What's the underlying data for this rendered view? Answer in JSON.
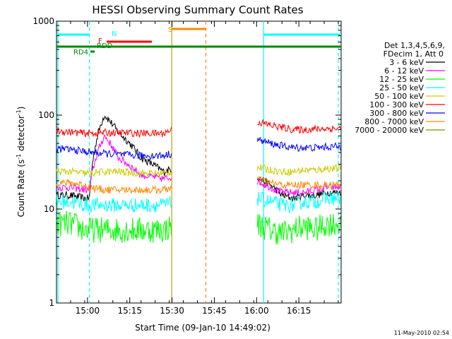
{
  "chart_data": {
    "type": "line",
    "title": "HESSI Observing Summary Count Rates",
    "xlabel": "Start Time (09-Jan-10 14:49:02)",
    "ylabel": "Count Rate (s^-1 detector^-1)",
    "ylabel_parts": {
      "base": "Count Rate (s",
      "sup1": "-1",
      "mid": " detector",
      "sup2": "-1",
      "end": ")"
    },
    "y_scale": "log",
    "ylim": [
      1,
      1000
    ],
    "y_ticks": [
      {
        "value": 1,
        "label": "1"
      },
      {
        "value": 10,
        "label": "10"
      },
      {
        "value": 100,
        "label": "100"
      },
      {
        "value": 1000,
        "label": "1000"
      }
    ],
    "xlim_minutes_after_1449": [
      0,
      101
    ],
    "x_ticks": [
      {
        "value": 11,
        "label": "15:00"
      },
      {
        "value": 26,
        "label": "15:15"
      },
      {
        "value": 41,
        "label": "15:30"
      },
      {
        "value": 56,
        "label": "15:45"
      },
      {
        "value": 71,
        "label": "16:00"
      },
      {
        "value": 86,
        "label": "16:15"
      }
    ],
    "legend": {
      "header": [
        "Det 1,3,4,5,6,9,",
        "FDecim 1, Att 0"
      ],
      "placement": "right"
    },
    "series": [
      {
        "name": "3 - 6 keV",
        "color": "#000000",
        "x": [
          0,
          5,
          10,
          11.7,
          17,
          22,
          30,
          38,
          40.9,
          53,
          71,
          76,
          80,
          84,
          88,
          92,
          96,
          101
        ],
        "y": [
          14,
          14,
          13,
          13,
          100,
          65,
          35,
          25,
          27,
          null,
          22,
          18,
          14,
          13,
          14,
          14,
          15,
          15
        ]
      },
      {
        "name": "6 - 12 keV",
        "color": "#ff00ff",
        "x": [
          0,
          5,
          10,
          11.7,
          17,
          22,
          30,
          38,
          40.9,
          53,
          71,
          76,
          80,
          84,
          88,
          92,
          96,
          101
        ],
        "y": [
          17,
          17,
          16,
          16,
          60,
          35,
          23,
          21,
          22,
          null,
          20,
          17,
          15,
          15,
          15,
          16,
          17,
          17
        ]
      },
      {
        "name": "12 - 25 keV",
        "color": "#00ff00",
        "x": [
          0,
          5,
          10,
          11.7,
          17,
          22,
          30,
          38,
          40.9,
          53,
          71,
          76,
          80,
          84,
          88,
          92,
          96,
          101
        ],
        "y": [
          7,
          7,
          6,
          6,
          6,
          6,
          6,
          6,
          6.5,
          null,
          7,
          6,
          5.5,
          6,
          6.5,
          6,
          7,
          7
        ]
      },
      {
        "name": "25 - 50 keV",
        "color": "#00ffff",
        "x": [
          0,
          5,
          10,
          11.7,
          17,
          22,
          30,
          38,
          40.9,
          53,
          71,
          76,
          80,
          84,
          88,
          92,
          96,
          101
        ],
        "y": [
          12,
          12,
          11,
          11,
          11,
          11,
          11,
          11,
          11.5,
          null,
          13,
          12,
          11,
          11,
          12,
          12,
          13,
          13
        ]
      },
      {
        "name": "50 - 100 keV",
        "color": "#cccc00",
        "x": [
          0,
          5,
          10,
          11.7,
          17,
          22,
          30,
          38,
          40.9,
          53,
          71,
          76,
          80,
          84,
          88,
          92,
          96,
          101
        ],
        "y": [
          25,
          25,
          24,
          24,
          25,
          25,
          24,
          24,
          25,
          null,
          28,
          26,
          25,
          25,
          26,
          26,
          27,
          27
        ]
      },
      {
        "name": "100 - 300 keV",
        "color": "#ff0000",
        "x": [
          0,
          5,
          10,
          11.7,
          17,
          22,
          30,
          38,
          40.9,
          53,
          71,
          76,
          80,
          84,
          88,
          92,
          96,
          101
        ],
        "y": [
          68,
          66,
          64,
          64,
          65,
          65,
          64,
          64,
          70,
          null,
          85,
          78,
          74,
          70,
          70,
          71,
          72,
          72
        ]
      },
      {
        "name": "300 - 800 keV",
        "color": "#0000ff",
        "x": [
          0,
          5,
          10,
          11.7,
          17,
          22,
          30,
          38,
          40.9,
          53,
          71,
          76,
          80,
          84,
          88,
          92,
          96,
          101
        ],
        "y": [
          44,
          43,
          41,
          40,
          39,
          38,
          37,
          37,
          39,
          null,
          55,
          50,
          47,
          45,
          45,
          45,
          46,
          46
        ]
      },
      {
        "name": "800 - 7000 keV",
        "color": "#ff8800",
        "x": [
          0,
          5,
          10,
          11.7,
          17,
          22,
          30,
          38,
          40.9,
          53,
          71,
          76,
          80,
          84,
          88,
          92,
          96,
          101
        ],
        "y": [
          19,
          19,
          18,
          17,
          16,
          16,
          16,
          16,
          17,
          null,
          21,
          19,
          18,
          18,
          18,
          18,
          18,
          18
        ]
      },
      {
        "name": "7000 - 20000 keV",
        "color": "#888800",
        "x": [],
        "y": []
      }
    ],
    "annotations": [
      {
        "label": "N",
        "color": "#00ffff"
      },
      {
        "label": "F",
        "color": "#ff0000"
      },
      {
        "label": "S",
        "color": "#ff8800"
      },
      {
        "label": "RDD",
        "color": "#008800"
      },
      {
        "label": "RD4",
        "color": "#008800"
      }
    ]
  },
  "footer": {
    "date": "11-May-2010 02:54"
  }
}
